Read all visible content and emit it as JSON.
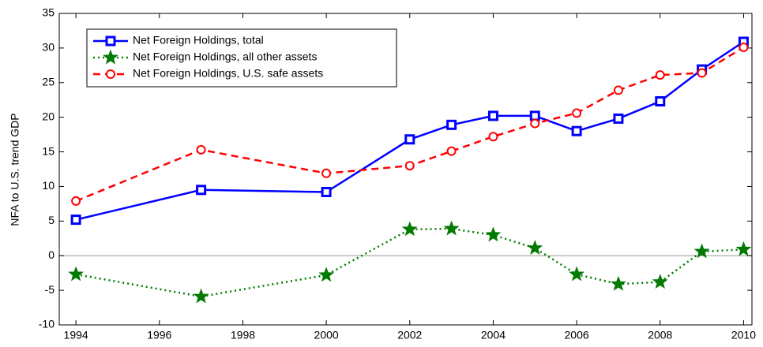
{
  "chart_data": {
    "type": "line",
    "y_label": "NFA to U.S. trend GDP",
    "x": [
      1994,
      1997,
      2000,
      2002,
      2003,
      2004,
      2005,
      2006,
      2007,
      2008,
      2009,
      2010
    ],
    "series": [
      {
        "name": "Net Foreign Holdings, total",
        "color": "#0000ff",
        "line": "solid",
        "marker": "square",
        "values": [
          5.2,
          9.5,
          9.2,
          16.8,
          18.9,
          20.2,
          20.2,
          18.0,
          19.8,
          22.3,
          26.9,
          30.9
        ]
      },
      {
        "name": "Net Foreign Holdings, all other assets",
        "color": "#007a00",
        "line": "dotted",
        "marker": "star",
        "values": [
          -2.7,
          -5.9,
          -2.8,
          3.8,
          3.9,
          3.0,
          1.1,
          -2.7,
          -4.1,
          -3.8,
          0.6,
          0.9
        ]
      },
      {
        "name": "Net Foreign Holdings, U.S. safe assets",
        "color": "#ff0000",
        "line": "dashed",
        "marker": "circle",
        "values": [
          7.9,
          15.3,
          11.9,
          13.0,
          15.1,
          17.2,
          19.1,
          20.6,
          23.9,
          26.1,
          26.4,
          30.1
        ]
      }
    ],
    "xlim": [
      1993.6,
      2010.2
    ],
    "xticks": [
      1994,
      1996,
      1998,
      2000,
      2002,
      2004,
      2006,
      2008,
      2010
    ],
    "ylim": [
      -10,
      35
    ],
    "yticks": [
      -10,
      -5,
      0,
      5,
      10,
      15,
      20,
      25,
      30,
      35
    ],
    "legend": "upper-left",
    "zero_line": true
  }
}
